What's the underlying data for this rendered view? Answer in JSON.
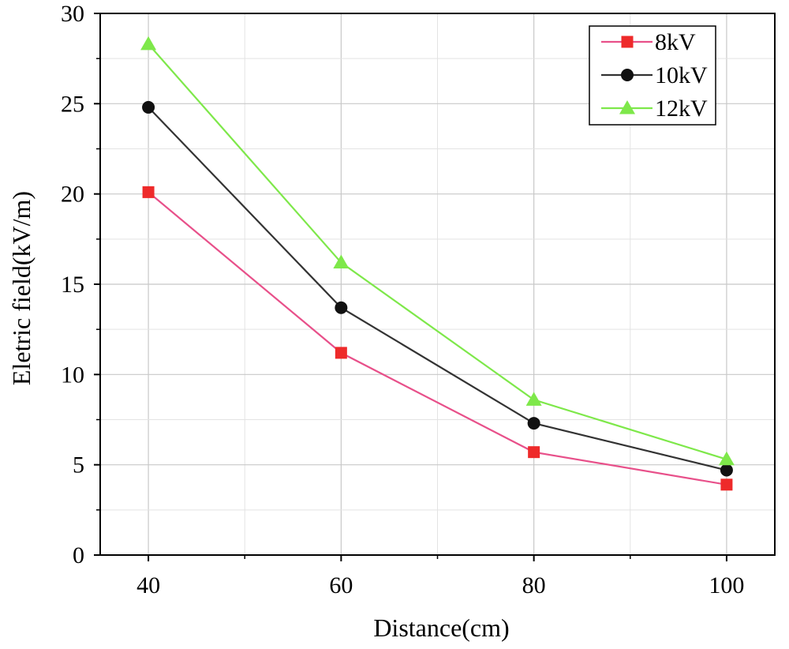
{
  "chart_data": {
    "type": "line",
    "x": [
      40,
      60,
      80,
      100
    ],
    "series": [
      {
        "name": "8kV",
        "values": [
          20.1,
          11.2,
          5.7,
          3.9
        ],
        "color": "#e8508a",
        "marker": "square",
        "marker_color": "#ee2a2a"
      },
      {
        "name": "10kV",
        "values": [
          24.8,
          13.7,
          7.3,
          4.7
        ],
        "color": "#333333",
        "marker": "circle",
        "marker_color": "#111111"
      },
      {
        "name": "12kV",
        "values": [
          28.3,
          16.2,
          8.6,
          5.3
        ],
        "color": "#7ee84a",
        "marker": "triangle",
        "marker_color": "#7ee84a"
      }
    ],
    "xlabel": "Distance(cm)",
    "ylabel": "Eletric field(kV/m)",
    "xlim": [
      35,
      105
    ],
    "ylim": [
      0,
      30
    ],
    "xticks": [
      40,
      60,
      80,
      100
    ],
    "yticks": [
      0,
      5,
      10,
      15,
      20,
      25,
      30
    ],
    "x_minor_grid": [
      50,
      70,
      90
    ],
    "y_minor_grid": [
      2.5,
      7.5,
      12.5,
      17.5,
      22.5,
      27.5
    ],
    "grid": true,
    "legend_position": "top-right"
  }
}
